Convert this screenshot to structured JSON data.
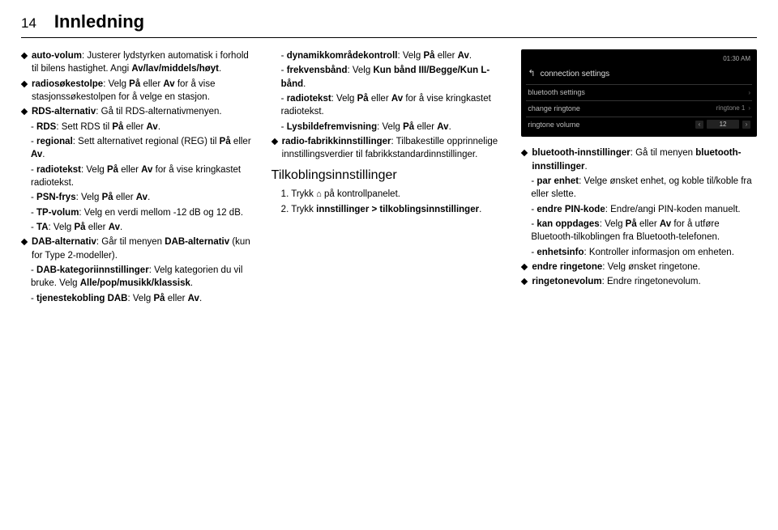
{
  "header": {
    "page_number": "14",
    "title": "Innledning"
  },
  "col1": {
    "auto_volum": "auto-volum",
    "auto_volum_txt": ": Justerer lydstyrken automatisk i forhold til bilens hastighet. Angi ",
    "auto_volum_opt": "Av/lav/middels/høyt",
    "radiosokestolpe": "radiosøkestolpe",
    "radiosokestolpe_txt": ": Velg ",
    "pa": "På",
    "eller": " eller ",
    "av": "Av",
    "radiosokestolpe_tail": " for å vise stasjonssøkestolpen for å velge en stasjon.",
    "rds_alt": "RDS-alternativ",
    "rds_alt_txt": ": Gå til RDS-alternativmenyen.",
    "rds": "RDS",
    "rds_txt": ": Sett RDS til ",
    "regional": "regional",
    "regional_txt": ": Sett alternativet regional (REG) til ",
    "radiotekst": "radiotekst",
    "radiotekst_txt_a": ": Velg ",
    "radiotekst_txt_b": " for å vise kringkastet radiotekst.",
    "psn": "PSN-frys",
    "psn_txt": ": Velg ",
    "tp": "TP-volum",
    "tp_txt": ": Velg en verdi mellom -12 dB og 12 dB.",
    "ta": "TA",
    "ta_txt": ": Velg ",
    "dab_alt": "DAB-alternativ",
    "dab_alt_txt_a": ": Går til menyen ",
    "dab_alt_txt_b": " (kun for Type 2-modeller).",
    "dab_kat": "DAB-kategoriinnstillinger",
    "dab_kat_txt": ": Velg kategorien du vil bruke. Velg ",
    "dab_kat_opt": "Alle/pop/musikk/klassisk",
    "tjenestekobling": "tjenestekobling DAB",
    "tjenestekobling_txt": ": Velg "
  },
  "col2": {
    "dynamikk": "dynamikkområdekontroll",
    "dynamikk_txt": ": Velg ",
    "frekvens": "frekvensbånd",
    "frekvens_txt": ": Velg ",
    "frekvens_opt": "Kun bånd III/Begge/Kun L-bånd",
    "radiotekst": "radiotekst",
    "radiotekst_txt": ": Velg ",
    "radiotekst_tail": " for å vise kringkastet radiotekst.",
    "lysbilde": "Lysbildefremvisning",
    "lysbilde_txt": ": Velg ",
    "radio_fab": "radio-fabrikkinnstillinger",
    "radio_fab_txt": ": Tilbakestille opprinnelige innstillingsverdier til fabrikkstandardinnstillinger.",
    "section": "Tilkoblingsinnstillinger",
    "step1": "1. Trykk ",
    "step1_tail": " på kontrollpanelet.",
    "step2": "2. Trykk ",
    "step2_b": "innstillinger > tilkoblingsinnstillinger",
    "pa": "På",
    "eller": " eller ",
    "av": "Av"
  },
  "col3": {
    "screenshot": {
      "clock": "01:30 AM",
      "title": "connection settings",
      "row1": "bluetooth settings",
      "row2": "change ringtone",
      "row2_val": "ringtone 1",
      "row3": "ringtone volume",
      "slider_val": "12"
    },
    "bt_set": "bluetooth-innstillinger",
    "bt_set_txt": ": Gå til menyen ",
    "bt_set_menu": "bluetooth-innstillinger",
    "par_enhet": "par enhet",
    "par_enhet_txt": ": Velge ønsket enhet, og koble til/koble fra eller slette.",
    "endre_pin": "endre PIN-kode",
    "endre_pin_txt": ": Endre/angi PIN-koden manuelt.",
    "kan_oppdages": "kan oppdages",
    "kan_oppdages_txt": ": Velg ",
    "kan_oppdages_tail": " for å utføre Bluetooth-tilkoblingen fra Bluetooth-telefonen.",
    "enhetsinfo": "enhetsinfo",
    "enhetsinfo_txt": ": Kontroller informasjon om enheten.",
    "endre_ringetone": "endre ringetone",
    "endre_ringetone_txt": ": Velg ønsket ringetone.",
    "ringetonevolum": "ringetonevolum",
    "ringetonevolum_txt": ": Endre ringetonevolum.",
    "pa": "På",
    "eller": " eller ",
    "av": "Av"
  }
}
